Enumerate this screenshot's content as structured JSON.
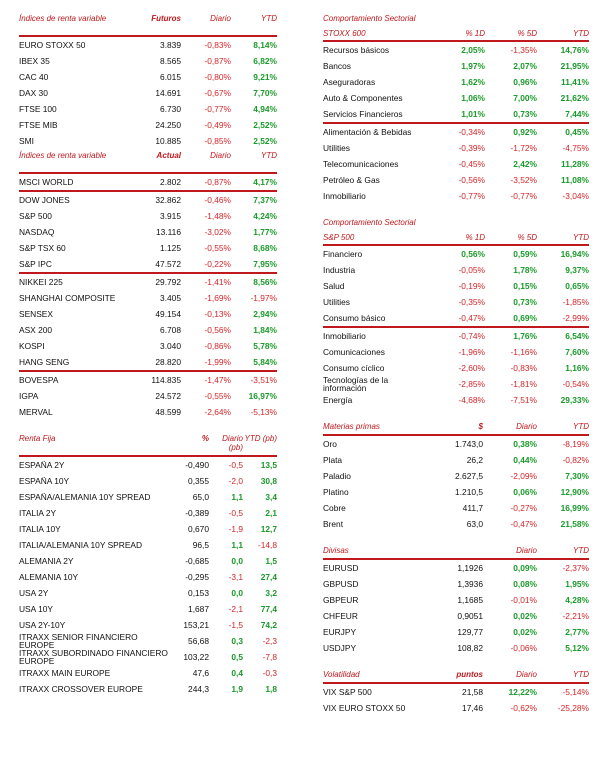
{
  "left": {
    "futuros": {
      "headers": [
        "Índices de renta variable",
        "Futuros",
        "Diario",
        "YTD"
      ],
      "rows": [
        {
          "name": "EURO STOXX 50",
          "value": "3.839",
          "daily": "-0,83%",
          "ytd": "8,14%"
        },
        {
          "name": "IBEX 35",
          "value": "8.565",
          "daily": "-0,87%",
          "ytd": "6,82%"
        },
        {
          "name": "CAC 40",
          "value": "6.015",
          "daily": "-0,80%",
          "ytd": "9,21%"
        },
        {
          "name": "DAX 30",
          "value": "14.691",
          "daily": "-0,67%",
          "ytd": "7,70%"
        },
        {
          "name": "FTSE 100",
          "value": "6.730",
          "daily": "-0,77%",
          "ytd": "4,94%"
        },
        {
          "name": "FTSE MIB",
          "value": "24.250",
          "daily": "-0,49%",
          "ytd": "2,52%"
        },
        {
          "name": "SMI",
          "value": "10.885",
          "daily": "-0,85%",
          "ytd": "2,52%"
        }
      ]
    },
    "actual": {
      "headers": [
        "Índices de renta variable",
        "Actual",
        "Diario",
        "YTD"
      ],
      "rows": [
        {
          "name": "MSCI WORLD",
          "value": "2.802",
          "daily": "-0,87%",
          "ytd": "4,17%",
          "sep": false
        },
        {
          "name": "DOW JONES",
          "value": "32.862",
          "daily": "-0,46%",
          "ytd": "7,37%",
          "sep": true
        },
        {
          "name": "S&P 500",
          "value": "3.915",
          "daily": "-1,48%",
          "ytd": "4,24%",
          "sep": false
        },
        {
          "name": "NASDAQ",
          "value": "13.116",
          "daily": "-3,02%",
          "ytd": "1,77%",
          "sep": false
        },
        {
          "name": "S&P TSX 60",
          "value": "1.125",
          "daily": "-0,55%",
          "ytd": "8,68%",
          "sep": false
        },
        {
          "name": "S&P IPC",
          "value": "47.572",
          "daily": "-0,22%",
          "ytd": "7,95%",
          "sep": false
        },
        {
          "name": "NIKKEI 225",
          "value": "29.792",
          "daily": "-1,41%",
          "ytd": "8,56%",
          "sep": true
        },
        {
          "name": "SHANGHAI COMPOSITE",
          "value": "3.405",
          "daily": "-1,69%",
          "ytd": "-1,97%",
          "sep": false
        },
        {
          "name": "SENSEX",
          "value": "49.154",
          "daily": "-0,13%",
          "ytd": "2,94%",
          "sep": false
        },
        {
          "name": "ASX 200",
          "value": "6.708",
          "daily": "-0,56%",
          "ytd": "1,84%",
          "sep": false
        },
        {
          "name": "KOSPI",
          "value": "3.040",
          "daily": "-0,86%",
          "ytd": "5,78%",
          "sep": false
        },
        {
          "name": "HANG SENG",
          "value": "28.820",
          "daily": "-1,99%",
          "ytd": "5,84%",
          "sep": false
        },
        {
          "name": "BOVESPA",
          "value": "114.835",
          "daily": "-1,47%",
          "ytd": "-3,51%",
          "sep": true
        },
        {
          "name": "IGPA",
          "value": "24.572",
          "daily": "-0,55%",
          "ytd": "16,97%",
          "sep": false
        },
        {
          "name": "MERVAL",
          "value": "48.599",
          "daily": "-2,64%",
          "ytd": "-5,13%",
          "sep": false
        }
      ]
    },
    "renta_fija": {
      "headers": [
        "Renta Fija",
        "%",
        "Diario (pb)",
        "YTD (pb)"
      ],
      "rows": [
        {
          "name": "ESPAÑA 2Y",
          "value": "-0,490",
          "daily": "-0,5",
          "ytd": "13,5"
        },
        {
          "name": "ESPAÑA 10Y",
          "value": "0,355",
          "daily": "-2,0",
          "ytd": "30,8"
        },
        {
          "name": "ESPAÑA/ALEMANIA 10Y SPREAD",
          "value": "65,0",
          "daily": "1,1",
          "ytd": "3,4"
        },
        {
          "name": "ITALIA 2Y",
          "value": "-0,389",
          "daily": "-0,5",
          "ytd": "2,1"
        },
        {
          "name": "ITALIA 10Y",
          "value": "0,670",
          "daily": "-1,9",
          "ytd": "12,7"
        },
        {
          "name": "ITALIA/ALEMANIA 10Y SPREAD",
          "value": "96,5",
          "daily": "1,1",
          "ytd": "-14,8"
        },
        {
          "name": "ALEMANIA 2Y",
          "value": "-0,685",
          "daily": "0,0",
          "ytd": "1,5"
        },
        {
          "name": "ALEMANIA 10Y",
          "value": "-0,295",
          "daily": "-3,1",
          "ytd": "27,4"
        },
        {
          "name": "USA 2Y",
          "value": "0,153",
          "daily": "0,0",
          "ytd": "3,2"
        },
        {
          "name": "USA 10Y",
          "value": "1,687",
          "daily": "-2,1",
          "ytd": "77,4"
        },
        {
          "name": "USA 2Y-10Y",
          "value": "153,21",
          "daily": "-1,5",
          "ytd": "74,2"
        },
        {
          "name": "ITRAXX SENIOR FINANCIERO EUROPE",
          "value": "56,68",
          "daily": "0,3",
          "ytd": "-2,3"
        },
        {
          "name": "ITRAXX SUBORDINADO FINANCIERO EUROPE",
          "value": "103,22",
          "daily": "0,5",
          "ytd": "-7,8"
        },
        {
          "name": "ITRAXX MAIN EUROPE",
          "value": "47,6",
          "daily": "0,4",
          "ytd": "-0,3"
        },
        {
          "name": "ITRAXX CROSSOVER EUROPE",
          "value": "244,3",
          "daily": "1,9",
          "ytd": "1,8"
        }
      ]
    }
  },
  "right": {
    "stoxx": {
      "title": "Comportamiento Sectorial",
      "headers": [
        "STOXX 600",
        "% 1D",
        "% 5D",
        "YTD"
      ],
      "rows": [
        {
          "name": "Recursos básicos",
          "d1": "2,05%",
          "d5": "-1,35%",
          "ytd": "14,76%",
          "sep": false
        },
        {
          "name": "Bancos",
          "d1": "1,97%",
          "d5": "2,07%",
          "ytd": "21,95%",
          "sep": false
        },
        {
          "name": "Aseguradoras",
          "d1": "1,62%",
          "d5": "0,96%",
          "ytd": "11,41%",
          "sep": false
        },
        {
          "name": "Auto & Componentes",
          "d1": "1,06%",
          "d5": "7,00%",
          "ytd": "21,62%",
          "sep": false
        },
        {
          "name": "Servicios Financieros",
          "d1": "1,01%",
          "d5": "0,73%",
          "ytd": "7,44%",
          "sep": false
        },
        {
          "name": "Alimentación & Bebidas",
          "d1": "-0,34%",
          "d5": "0,92%",
          "ytd": "0,45%",
          "sep": true
        },
        {
          "name": "Utilities",
          "d1": "-0,39%",
          "d5": "-1,72%",
          "ytd": "-4,75%",
          "sep": false
        },
        {
          "name": "Telecomunicaciones",
          "d1": "-0,45%",
          "d5": "2,42%",
          "ytd": "11,28%",
          "sep": false
        },
        {
          "name": "Petróleo & Gas",
          "d1": "-0,56%",
          "d5": "-3,52%",
          "ytd": "11,08%",
          "sep": false
        },
        {
          "name": "Inmobiliario",
          "d1": "-0,77%",
          "d5": "-0,77%",
          "ytd": "-3,04%",
          "sep": false
        }
      ]
    },
    "sp500": {
      "title": "Comportamiento Sectorial",
      "headers": [
        "S&P 500",
        "% 1D",
        "% 5D",
        "YTD"
      ],
      "rows": [
        {
          "name": "Financiero",
          "d1": "0,56%",
          "d5": "0,59%",
          "ytd": "16,94%",
          "sep": false
        },
        {
          "name": "Industria",
          "d1": "-0,05%",
          "d5": "1,78%",
          "ytd": "9,37%",
          "sep": false
        },
        {
          "name": "Salud",
          "d1": "-0,19%",
          "d5": "0,15%",
          "ytd": "0,65%",
          "sep": false
        },
        {
          "name": "Utilities",
          "d1": "-0,35%",
          "d5": "0,73%",
          "ytd": "-1,85%",
          "sep": false
        },
        {
          "name": "Consumo básico",
          "d1": "-0,47%",
          "d5": "0,69%",
          "ytd": "-2,99%",
          "sep": false
        },
        {
          "name": "Inmobiliario",
          "d1": "-0,74%",
          "d5": "1,76%",
          "ytd": "6,54%",
          "sep": true
        },
        {
          "name": "Comunicaciones",
          "d1": "-1,96%",
          "d5": "-1,16%",
          "ytd": "7,60%",
          "sep": false
        },
        {
          "name": "Consumo cíclico",
          "d1": "-2,60%",
          "d5": "-0,83%",
          "ytd": "1,16%",
          "sep": false
        },
        {
          "name": "Tecnologías de la información",
          "d1": "-2,85%",
          "d5": "-1,81%",
          "ytd": "-0,54%",
          "sep": false
        },
        {
          "name": "Energía",
          "d1": "-4,68%",
          "d5": "-7,51%",
          "ytd": "29,33%",
          "sep": false
        }
      ]
    },
    "materias": {
      "headers": [
        "Materias primas",
        "$",
        "Diario",
        "YTD"
      ],
      "rows": [
        {
          "name": "Oro",
          "value": "1.743,0",
          "daily": "0,38%",
          "ytd": "-8,19%"
        },
        {
          "name": "Plata",
          "value": "26,2",
          "daily": "0,44%",
          "ytd": "-0,82%"
        },
        {
          "name": "Paladio",
          "value": "2.627,5",
          "daily": "-2,09%",
          "ytd": "7,30%"
        },
        {
          "name": "Platino",
          "value": "1.210,5",
          "daily": "0,06%",
          "ytd": "12,90%"
        },
        {
          "name": "Cobre",
          "value": "411,7",
          "daily": "-0,27%",
          "ytd": "16,99%"
        },
        {
          "name": "Brent",
          "value": "63,0",
          "daily": "-0,47%",
          "ytd": "21,58%"
        }
      ]
    },
    "divisas": {
      "headers": [
        "Divisas",
        "",
        "Diario",
        "YTD"
      ],
      "rows": [
        {
          "name": "EURUSD",
          "value": "1,1926",
          "daily": "0,09%",
          "ytd": "-2,37%"
        },
        {
          "name": "GBPUSD",
          "value": "1,3936",
          "daily": "0,08%",
          "ytd": "1,95%"
        },
        {
          "name": "GBPEUR",
          "value": "1,1685",
          "daily": "-0,01%",
          "ytd": "4,28%"
        },
        {
          "name": "CHFEUR",
          "value": "0,9051",
          "daily": "0,02%",
          "ytd": "-2,21%"
        },
        {
          "name": "EURJPY",
          "value": "129,77",
          "daily": "0,02%",
          "ytd": "2,77%"
        },
        {
          "name": "USDJPY",
          "value": "108,82",
          "daily": "-0,06%",
          "ytd": "5,12%"
        }
      ]
    },
    "volatilidad": {
      "headers": [
        "Volatilidad",
        "puntos",
        "Diario",
        "YTD"
      ],
      "rows": [
        {
          "name": "VIX S&P 500",
          "value": "21,58",
          "daily": "12,22%",
          "ytd": "-5,14%"
        },
        {
          "name": "VIX EURO STOXX 50",
          "value": "17,46",
          "daily": "-0,62%",
          "ytd": "-25,28%"
        }
      ]
    }
  },
  "colors": {
    "accent": "#c0181c",
    "positive": "#1a9a2a",
    "negative": "#d3262a"
  }
}
